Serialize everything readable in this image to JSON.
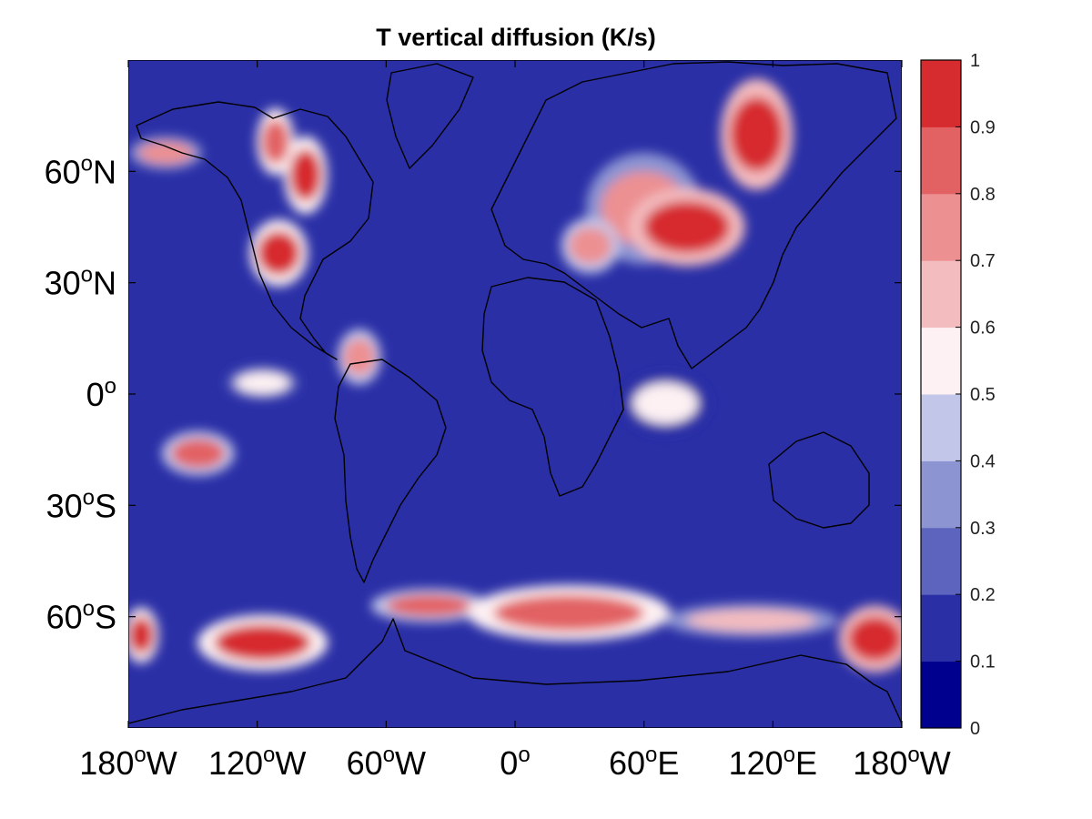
{
  "chart_data": {
    "type": "heatmap",
    "title": "T vertical diffusion (K/s)",
    "xlabel": "",
    "ylabel": "",
    "xlim": [
      -180,
      180
    ],
    "ylim": [
      -90,
      90
    ],
    "x_ticks": [
      {
        "value": -180,
        "deg": "180",
        "hemi": "W"
      },
      {
        "value": -120,
        "deg": "120",
        "hemi": "W"
      },
      {
        "value": -60,
        "deg": "60",
        "hemi": "W"
      },
      {
        "value": 0,
        "deg": "0",
        "hemi": ""
      },
      {
        "value": 60,
        "deg": "60",
        "hemi": "E"
      },
      {
        "value": 120,
        "deg": "120",
        "hemi": "E"
      },
      {
        "value": 180,
        "deg": "180",
        "hemi": "W"
      }
    ],
    "y_ticks": [
      {
        "value": 60,
        "deg": "60",
        "hemi": "N"
      },
      {
        "value": 30,
        "deg": "30",
        "hemi": "N"
      },
      {
        "value": 0,
        "deg": "0",
        "hemi": ""
      },
      {
        "value": -30,
        "deg": "30",
        "hemi": "S"
      },
      {
        "value": -60,
        "deg": "60",
        "hemi": "S"
      }
    ],
    "colorbar": {
      "levels": [
        0,
        0.1,
        0.2,
        0.3,
        0.4,
        0.5,
        0.6,
        0.7,
        0.8,
        0.9,
        1
      ],
      "tick_labels": [
        "0",
        "0.1",
        "0.2",
        "0.3",
        "0.4",
        "0.5",
        "0.6",
        "0.7",
        "0.8",
        "0.9",
        "1"
      ],
      "colors": [
        "#00008f",
        "#2a2fa6",
        "#5c64be",
        "#8d94d2",
        "#c2c7ea",
        "#fdf1f3",
        "#f3bcbf",
        "#ec9092",
        "#e26264",
        "#d62b2f"
      ]
    },
    "background_value": 0.15,
    "regions": [
      {
        "lon": [
          -118,
          -105
        ],
        "lat": [
          62,
          74
        ],
        "value": 0.85
      },
      {
        "lon": [
          -105,
          -90
        ],
        "lat": [
          52,
          66
        ],
        "value": 0.9
      },
      {
        "lon": [
          -120,
          -100
        ],
        "lat": [
          32,
          44
        ],
        "value": 0.9
      },
      {
        "lon": [
          -175,
          -150
        ],
        "lat": [
          62,
          68
        ],
        "value": 0.7
      },
      {
        "lon": [
          -80,
          -65
        ],
        "lat": [
          5,
          15
        ],
        "value": 0.75
      },
      {
        "lon": [
          -130,
          -105
        ],
        "lat": [
          0,
          6
        ],
        "value": 0.55
      },
      {
        "lon": [
          -160,
          -135
        ],
        "lat": [
          -20,
          -12
        ],
        "value": 0.8
      },
      {
        "lon": [
          40,
          80
        ],
        "lat": [
          40,
          60
        ],
        "value": 0.7
      },
      {
        "lon": [
          60,
          100
        ],
        "lat": [
          38,
          52
        ],
        "value": 0.95
      },
      {
        "lon": [
          100,
          125
        ],
        "lat": [
          60,
          80
        ],
        "value": 0.95
      },
      {
        "lon": [
          25,
          45
        ],
        "lat": [
          35,
          45
        ],
        "value": 0.75
      },
      {
        "lon": [
          55,
          85
        ],
        "lat": [
          -8,
          3
        ],
        "value": 0.5
      },
      {
        "lon": [
          -140,
          -95
        ],
        "lat": [
          -72,
          -62
        ],
        "value": 0.9
      },
      {
        "lon": [
          -180,
          -168
        ],
        "lat": [
          -70,
          -60
        ],
        "value": 0.9
      },
      {
        "lon": [
          -60,
          -20
        ],
        "lat": [
          -60,
          -54
        ],
        "value": 0.8
      },
      {
        "lon": [
          -10,
          60
        ],
        "lat": [
          -64,
          -54
        ],
        "value": 0.85
      },
      {
        "lon": [
          80,
          140
        ],
        "lat": [
          -64,
          -58
        ],
        "value": 0.65
      },
      {
        "lon": [
          155,
          180
        ],
        "lat": [
          -72,
          -60
        ],
        "value": 0.95
      }
    ]
  }
}
